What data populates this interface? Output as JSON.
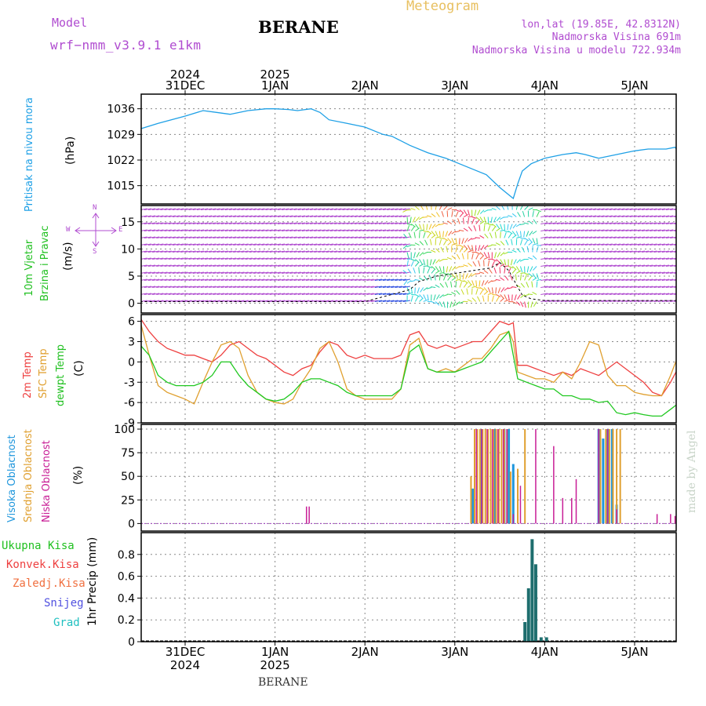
{
  "header": {
    "model_label": "Model",
    "model_name": "wrf−nmm_v3.9.1 e1km",
    "title": "BERANE",
    "meteogram_label": "Meteogram",
    "lonlat": "lon,lat (19.85E, 42.8312N)",
    "altitude": "Nadmorska Visina 691m",
    "model_altitude": "Nadmorska Visina u modelu 722.934m"
  },
  "footer": {
    "station": "BERANE"
  },
  "watermark": "made by Angel",
  "colors": {
    "pressure": "#1ea0e6",
    "t2m": "#ee4040",
    "sfc": "#e0a030",
    "dewpt": "#20c820",
    "cloud_high": "#1e96dc",
    "cloud_mid": "#e0a030",
    "cloud_low": "#c81e96",
    "precip": "#1e6e6e",
    "purple": "#b04cd0"
  },
  "date_axis_top": [
    {
      "day": "31DEC",
      "year": "2024"
    },
    {
      "day": "1JAN",
      "year": "2025"
    },
    {
      "day": "2JAN",
      "year": ""
    },
    {
      "day": "3JAN",
      "year": ""
    },
    {
      "day": "4JAN",
      "year": ""
    },
    {
      "day": "5JAN",
      "year": ""
    }
  ],
  "date_axis_bottom": [
    {
      "day": "31DEC",
      "year": "2024"
    },
    {
      "day": "1JAN",
      "year": "2025"
    },
    {
      "day": "2JAN",
      "year": ""
    },
    {
      "day": "3JAN",
      "year": ""
    },
    {
      "day": "4JAN",
      "year": ""
    },
    {
      "day": "5JAN",
      "year": ""
    }
  ],
  "panels": {
    "pressure": {
      "label": "Pritisak na nivou mora",
      "unit": "(hPa)"
    },
    "wind": {
      "label1": "10m Vjetar",
      "label2": "Brzina i Pravac",
      "unit": "(m/s)",
      "compass_w": "W",
      "compass_e": "E",
      "compass_n": "N",
      "compass_s": "S"
    },
    "temp": {
      "label_t2m": "2m Temp",
      "label_sfc": "SFC Temp",
      "label_dew": "dewpt Temp",
      "unit": "(C)"
    },
    "cloud": {
      "label_high": "Visoka Oblacnost",
      "label_mid": "Srednja Oblacnost",
      "label_low": "Niska Oblacnost",
      "unit": "(%)"
    },
    "precip": {
      "label_total": "Ukupna Kisa",
      "label_conv": "Konvek.Kisa",
      "label_frz": "Zaledj.Kisa",
      "label_snow": "Snijeg",
      "label_grad": "Grad",
      "unit": "1hr Precip (mm)"
    }
  },
  "chart_data": [
    {
      "type": "line",
      "ylabel": "(hPa)",
      "x_unit": "day index (0 = 31DEC 00UTC)",
      "ylim": [
        1010,
        1040
      ],
      "yticks": [
        1015,
        1022,
        1029,
        1036
      ],
      "series": [
        {
          "name": "Pritisak na nivou mora",
          "x": [
            -0.5,
            -0.3,
            0,
            0.2,
            0.35,
            0.5,
            0.7,
            0.9,
            1.0,
            1.15,
            1.25,
            1.4,
            1.5,
            1.6,
            1.8,
            2.0,
            2.2,
            2.3,
            2.5,
            2.7,
            2.9,
            3.05,
            3.2,
            3.35,
            3.5,
            3.65,
            3.7,
            3.75,
            3.85,
            4.0,
            4.2,
            4.35,
            4.45,
            4.6,
            4.8,
            5.0,
            5.15,
            5.25,
            5.35,
            5.45,
            5.55
          ],
          "y": [
            1030.5,
            1032,
            1034,
            1035.5,
            1035,
            1034.5,
            1035.5,
            1036,
            1036,
            1035.8,
            1035.5,
            1036,
            1035,
            1033,
            1032,
            1031,
            1029,
            1028.5,
            1026,
            1024,
            1022.5,
            1021,
            1019.5,
            1018,
            1014.5,
            1011.5,
            1015.5,
            1019,
            1021,
            1022.5,
            1023.5,
            1024,
            1023.5,
            1022.5,
            1023.5,
            1024.5,
            1025,
            1025,
            1025,
            1025.5,
            1022
          ]
        }
      ]
    },
    {
      "type": "line",
      "ylabel": "(m/s)",
      "ylim": [
        -1.8,
        18
      ],
      "yticks": [
        0,
        5,
        10,
        15
      ],
      "series": [
        {
          "name": "wind speed",
          "x": [
            -0.5,
            0,
            1,
            2,
            2.5,
            2.6,
            2.8,
            3.0,
            3.2,
            3.4,
            3.5,
            3.6,
            3.7,
            3.75,
            3.85,
            4.0,
            4.5,
            5.0,
            5.55
          ],
          "y": [
            0.3,
            0.3,
            0.3,
            0.3,
            2.5,
            4,
            5,
            5.5,
            6,
            6.5,
            7.5,
            6,
            3,
            1.5,
            0.8,
            0.5,
            0.5,
            0.5,
            0.5
          ]
        }
      ]
    },
    {
      "type": "line",
      "ylabel": "(C)",
      "ylim": [
        -9,
        7
      ],
      "yticks": [
        -9,
        -6,
        -3,
        0,
        3,
        6
      ],
      "series": [
        {
          "name": "2m Temp",
          "x": [
            -0.5,
            -0.4,
            -0.3,
            -0.2,
            -0.1,
            0,
            0.1,
            0.2,
            0.3,
            0.4,
            0.5,
            0.6,
            0.7,
            0.8,
            0.9,
            1.0,
            1.1,
            1.2,
            1.3,
            1.4,
            1.5,
            1.6,
            1.7,
            1.8,
            1.9,
            2.0,
            2.1,
            2.2,
            2.3,
            2.4,
            2.5,
            2.6,
            2.7,
            2.8,
            2.9,
            3.0,
            3.1,
            3.2,
            3.3,
            3.4,
            3.5,
            3.6,
            3.65,
            3.7,
            3.8,
            3.9,
            4.0,
            4.1,
            4.2,
            4.3,
            4.4,
            4.5,
            4.6,
            4.7,
            4.8,
            4.9,
            5.0,
            5.1,
            5.2,
            5.3,
            5.4,
            5.5,
            5.55
          ],
          "y": [
            6.5,
            4.5,
            3,
            2,
            1.5,
            1,
            1,
            0.5,
            0,
            1,
            2.5,
            3,
            2,
            1,
            0.5,
            -0.5,
            -1.5,
            -2,
            -1,
            -0.5,
            1.5,
            3,
            2.5,
            1,
            0.5,
            1,
            0.5,
            0.5,
            0.5,
            1,
            4,
            4.5,
            2.5,
            2,
            2.5,
            2,
            2.5,
            3,
            3,
            4.5,
            6,
            5.5,
            5.8,
            -0.5,
            -0.5,
            -1,
            -1.5,
            -2,
            -1.5,
            -2,
            -1,
            -1.5,
            -2,
            -1,
            0,
            -1,
            -2,
            -3,
            -4.5,
            -5,
            -3,
            -0.5,
            0.5
          ]
        },
        {
          "name": "SFC Temp",
          "x": [
            -0.5,
            -0.4,
            -0.3,
            -0.2,
            -0.1,
            0,
            0.1,
            0.2,
            0.3,
            0.4,
            0.5,
            0.6,
            0.7,
            0.8,
            0.9,
            1.0,
            1.1,
            1.2,
            1.3,
            1.4,
            1.5,
            1.6,
            1.7,
            1.8,
            1.9,
            2.0,
            2.1,
            2.2,
            2.3,
            2.4,
            2.5,
            2.6,
            2.7,
            2.8,
            2.9,
            3.0,
            3.1,
            3.2,
            3.3,
            3.4,
            3.5,
            3.6,
            3.65,
            3.7,
            3.8,
            3.9,
            4.0,
            4.1,
            4.2,
            4.3,
            4.4,
            4.5,
            4.6,
            4.7,
            4.8,
            4.9,
            5.0,
            5.1,
            5.2,
            5.3,
            5.4,
            5.5,
            5.55
          ],
          "y": [
            6,
            1,
            -3.5,
            -4.5,
            -5,
            -5.5,
            -6.2,
            -3,
            0,
            2.5,
            3,
            2,
            -2,
            -4.5,
            -5.5,
            -6,
            -6.2,
            -5.5,
            -3,
            -1,
            2,
            3,
            0,
            -4,
            -5,
            -5.5,
            -5.5,
            -5.5,
            -5.5,
            -4,
            2.5,
            3.5,
            -1,
            -1.5,
            -1,
            -1.5,
            -0.5,
            0.5,
            0.5,
            2,
            4,
            4.5,
            3,
            -1.5,
            -2,
            -2.5,
            -2.5,
            -3,
            -1.5,
            -2.5,
            0,
            3,
            2.5,
            -2,
            -3.5,
            -3.5,
            -4.5,
            -4.8,
            -5,
            -5,
            -2,
            1.5,
            2.5
          ]
        },
        {
          "name": "dewpt Temp",
          "x": [
            -0.5,
            -0.4,
            -0.3,
            -0.2,
            -0.1,
            0,
            0.1,
            0.2,
            0.3,
            0.4,
            0.5,
            0.6,
            0.7,
            0.8,
            0.9,
            1.0,
            1.1,
            1.2,
            1.3,
            1.4,
            1.5,
            1.6,
            1.7,
            1.8,
            1.9,
            2.0,
            2.1,
            2.2,
            2.3,
            2.4,
            2.5,
            2.6,
            2.7,
            2.8,
            2.9,
            3.0,
            3.1,
            3.2,
            3.3,
            3.4,
            3.5,
            3.6,
            3.65,
            3.7,
            3.8,
            3.9,
            4.0,
            4.1,
            4.2,
            4.3,
            4.4,
            4.5,
            4.6,
            4.7,
            4.8,
            4.9,
            5.0,
            5.1,
            5.2,
            5.3,
            5.4,
            5.5,
            5.55
          ],
          "y": [
            2.5,
            1,
            -2,
            -3,
            -3.5,
            -3.5,
            -3.5,
            -3,
            -2,
            0,
            0,
            -2,
            -3.5,
            -4.5,
            -5.5,
            -5.8,
            -5.5,
            -4.5,
            -3,
            -2.5,
            -2.5,
            -3,
            -3.5,
            -4.5,
            -5,
            -5,
            -5,
            -5,
            -5,
            -4,
            1.5,
            2.5,
            -1,
            -1.5,
            -1.5,
            -1.5,
            -1,
            -0.5,
            0,
            1.5,
            3,
            4.5,
            1,
            -2.5,
            -3,
            -3.5,
            -4,
            -4,
            -5,
            -5,
            -5.5,
            -5.5,
            -6,
            -5.8,
            -7.5,
            -7.8,
            -7.5,
            -7.8,
            -8,
            -8,
            -7,
            -6,
            -5.5
          ]
        }
      ]
    },
    {
      "type": "bar",
      "ylabel": "(%)",
      "ylim": [
        -8,
        105
      ],
      "yticks": [
        0,
        25,
        50,
        75,
        100
      ],
      "series": [
        {
          "name": "Visoka Oblacnost",
          "x": [
            3.2,
            3.3,
            3.45,
            3.55,
            3.6,
            3.65,
            4.6,
            4.65,
            4.7,
            4.75,
            4.8
          ],
          "y": [
            37,
            100,
            100,
            100,
            100,
            63,
            100,
            90,
            100,
            100,
            20
          ]
        },
        {
          "name": "Srednja Oblacnost",
          "x": [
            3.18,
            3.22,
            3.25,
            3.28,
            3.31,
            3.34,
            3.37,
            3.4,
            3.43,
            3.46,
            3.49,
            3.52,
            3.55,
            3.58,
            3.62,
            3.7,
            3.78,
            4.62,
            4.68,
            4.72,
            4.76,
            4.8,
            4.84
          ],
          "y": [
            50,
            100,
            100,
            100,
            100,
            100,
            100,
            100,
            100,
            100,
            100,
            100,
            100,
            100,
            55,
            58,
            100,
            100,
            100,
            100,
            100,
            100,
            100
          ]
        },
        {
          "name": "Niska Oblacnost",
          "x": [
            1.35,
            1.38,
            3.24,
            3.3,
            3.36,
            3.42,
            3.48,
            3.54,
            3.58,
            3.65,
            3.73,
            3.9,
            4.1,
            4.2,
            4.3,
            4.35,
            4.6,
            4.7,
            4.8,
            5.25,
            5.4,
            5.45
          ],
          "y": [
            18,
            18,
            100,
            100,
            100,
            100,
            100,
            100,
            100,
            10,
            40,
            100,
            82,
            27,
            27,
            47,
            100,
            100,
            15,
            10,
            10,
            8
          ]
        }
      ]
    },
    {
      "type": "bar",
      "ylabel": "1hr Precip (mm)",
      "ylim": [
        0,
        1.0
      ],
      "yticks": [
        0,
        0.2,
        0.4,
        0.6,
        0.8
      ],
      "series": [
        {
          "name": "Ukupna Kisa",
          "x": [
            3.78,
            3.82,
            3.86,
            3.9,
            3.96,
            4.02
          ],
          "y": [
            0.18,
            0.49,
            0.94,
            0.71,
            0.04,
            0.04
          ]
        }
      ]
    }
  ]
}
